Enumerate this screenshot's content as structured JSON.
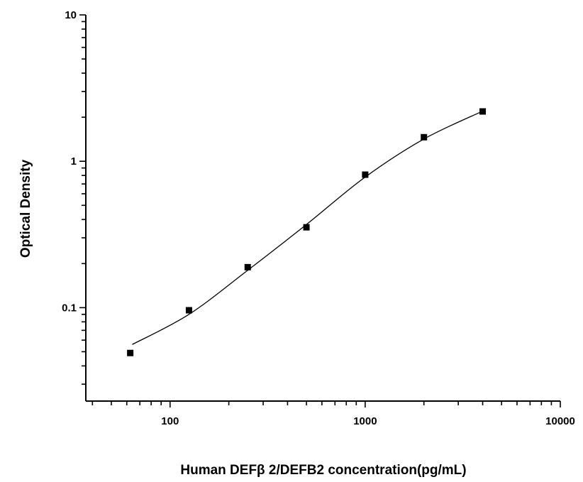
{
  "chart_data": {
    "type": "scatter",
    "title": "",
    "xlabel": "Human DEFβ 2/DEFB2 concentration(pg/mL)",
    "ylabel": "Optical Density",
    "x_scale": "log",
    "y_scale": "log",
    "xlim": [
      37,
      10000
    ],
    "ylim": [
      0.023,
      10
    ],
    "x_ticks": [
      100,
      1000,
      10000
    ],
    "x_tick_labels": [
      "100",
      "1000",
      "10000"
    ],
    "y_ticks": [
      0.1,
      1,
      10
    ],
    "y_tick_labels": [
      "0.1",
      "1",
      "10"
    ],
    "grid": false,
    "legend": "none",
    "marker": "square",
    "colors": {
      "points": "#000000",
      "curve": "#000000"
    },
    "points": {
      "x": [
        62.5,
        125,
        250,
        500,
        1000,
        2000,
        4000
      ],
      "y": [
        0.049,
        0.096,
        0.189,
        0.354,
        0.81,
        1.46,
        2.19
      ]
    },
    "fit_curve": {
      "x": [
        64,
        125,
        250,
        500,
        1000,
        2000,
        4000
      ],
      "y": [
        0.056,
        0.09,
        0.18,
        0.37,
        0.78,
        1.42,
        2.2
      ]
    }
  }
}
